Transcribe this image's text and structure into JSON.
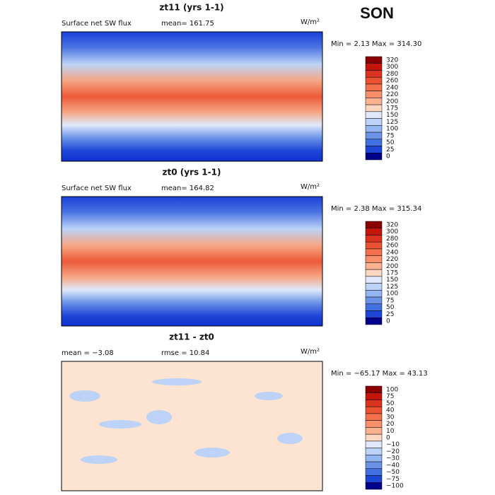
{
  "title": "SON",
  "panels": [
    {
      "title": "zt11 (yrs 1-1)",
      "label_left": "Surface net SW flux",
      "label_mid": "mean= 161.75",
      "units": "W/m²",
      "minmax": "Min =   2.13 Max = 314.30",
      "colorbar": {
        "labels": [
          "320",
          "300",
          "280",
          "260",
          "240",
          "220",
          "200",
          "175",
          "150",
          "125",
          "100",
          "75",
          "50",
          "25",
          "0"
        ],
        "colors": [
          "#8b0000",
          "#c4150b",
          "#dc3320",
          "#eb5234",
          "#f3704c",
          "#f78f6b",
          "#fab190",
          "#fdd7c2",
          "#dfe9fb",
          "#bcd3f7",
          "#93b5f0",
          "#6b93e8",
          "#4370e0",
          "#1e46d6",
          "#00008b"
        ]
      }
    },
    {
      "title": "zt0 (yrs 1-1)",
      "label_left": "Surface net SW flux",
      "label_mid": "mean= 164.82",
      "units": "W/m²",
      "minmax": "Min =   2.38 Max = 315.34",
      "colorbar": {
        "labels": [
          "320",
          "300",
          "280",
          "260",
          "240",
          "220",
          "200",
          "175",
          "150",
          "125",
          "100",
          "75",
          "50",
          "25",
          "0"
        ],
        "colors": [
          "#8b0000",
          "#c4150b",
          "#dc3320",
          "#eb5234",
          "#f3704c",
          "#f78f6b",
          "#fab190",
          "#fdd7c2",
          "#dfe9fb",
          "#bcd3f7",
          "#93b5f0",
          "#6b93e8",
          "#4370e0",
          "#1e46d6",
          "#00008b"
        ]
      }
    },
    {
      "title": "zt11 - zt0",
      "label_left": "mean =  −3.08",
      "label_mid": "rmse =  10.84",
      "units": "W/m²",
      "minmax": "Min = −65.17 Max =  43.13",
      "colorbar": {
        "labels": [
          "100",
          "75",
          "50",
          "40",
          "30",
          "20",
          "10",
          "0",
          "−10",
          "−20",
          "−30",
          "−40",
          "−50",
          "−75",
          "−100"
        ],
        "colors": [
          "#8b0000",
          "#c4150b",
          "#dc3320",
          "#eb5234",
          "#f3704c",
          "#f78f6b",
          "#fab190",
          "#fdd7c2",
          "#dfe9fb",
          "#bcd3f7",
          "#93b5f0",
          "#6b93e8",
          "#4370e0",
          "#1e46d6",
          "#00008b"
        ]
      }
    }
  ]
}
